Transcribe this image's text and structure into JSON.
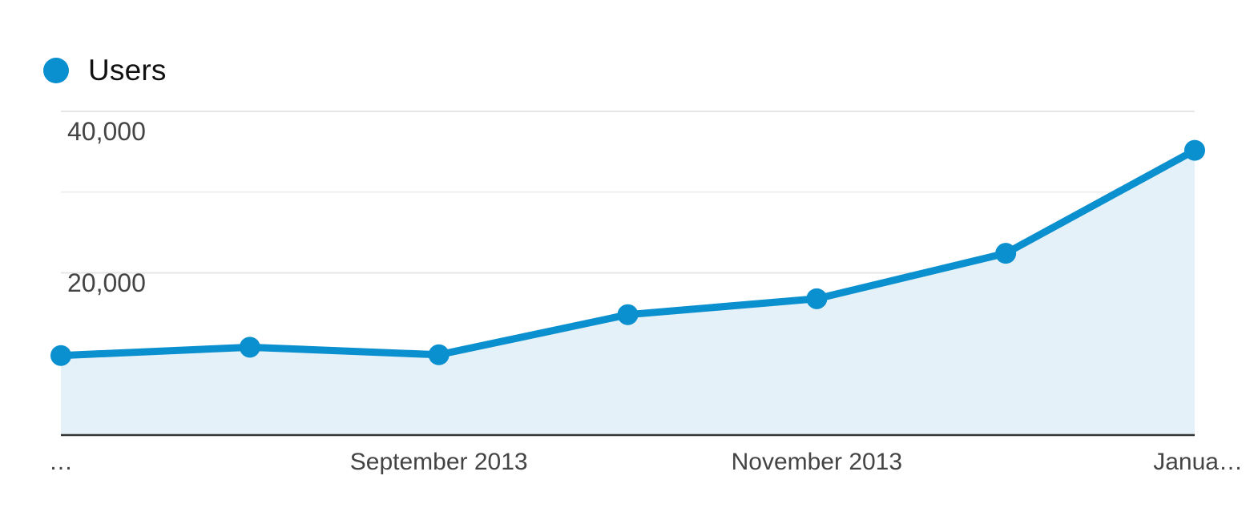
{
  "chart_data": {
    "type": "area",
    "series": [
      {
        "name": "Users",
        "color": "#0a8fcf",
        "values": [
          10400,
          11500,
          10500,
          15800,
          17900,
          23900,
          37500
        ]
      }
    ],
    "x_tick_labels": [
      "…",
      "September 2013",
      "November 2013",
      "Janua…"
    ],
    "y_tick_labels": [
      "40,000",
      "20,000"
    ],
    "y_ticks": [
      40000,
      20000
    ],
    "ylim": [
      0,
      40000
    ],
    "grid": true,
    "legend_position": "top-left",
    "area_fill": "#e4f1f8"
  }
}
